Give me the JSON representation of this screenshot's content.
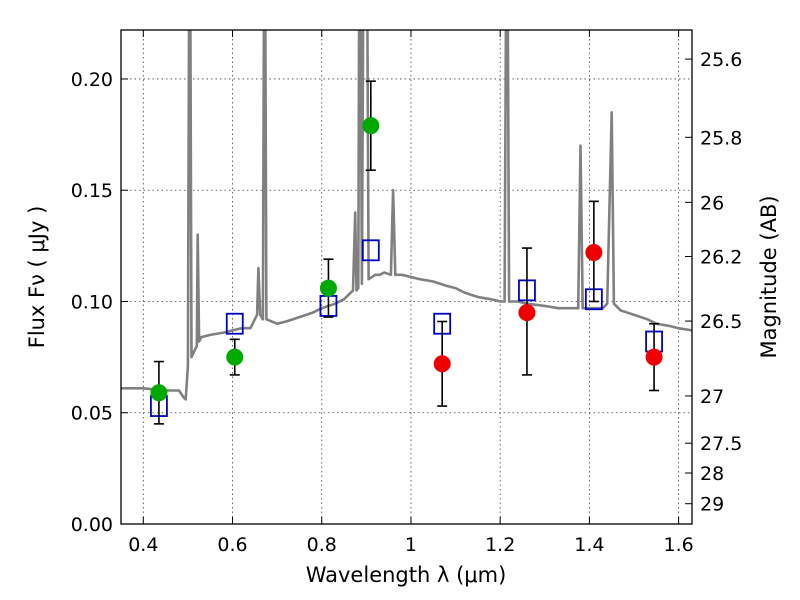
{
  "chart_data": {
    "type": "scatter",
    "xlabel": "Wavelength  λ (μm)",
    "ylabel": "Flux  Fν  ( μJy )",
    "y2label": "Magnitude (AB)",
    "xlim": [
      0.35,
      1.63
    ],
    "ylim": [
      0.0,
      0.222
    ],
    "grid": true,
    "x_ticks": [
      {
        "value": 0.4,
        "label": "0.4"
      },
      {
        "value": 0.6,
        "label": "0.6"
      },
      {
        "value": 0.8,
        "label": "0.8"
      },
      {
        "value": 1.0,
        "label": "1"
      },
      {
        "value": 1.2,
        "label": "1.2"
      },
      {
        "value": 1.4,
        "label": "1.4"
      },
      {
        "value": 1.6,
        "label": "1.6"
      }
    ],
    "y_ticks": [
      {
        "value": 0.0,
        "label": "0.00"
      },
      {
        "value": 0.05,
        "label": "0.05"
      },
      {
        "value": 0.1,
        "label": "0.10"
      },
      {
        "value": 0.15,
        "label": "0.15"
      },
      {
        "value": 0.2,
        "label": "0.20"
      }
    ],
    "mag_ticks": [
      {
        "value": 25.6,
        "label": "25.6"
      },
      {
        "value": 25.8,
        "label": "25.8"
      },
      {
        "value": 26.0,
        "label": "26"
      },
      {
        "value": 26.2,
        "label": "26.2"
      },
      {
        "value": 26.5,
        "label": "26.5"
      },
      {
        "value": 27.0,
        "label": "27"
      },
      {
        "value": 27.5,
        "label": "27.5"
      },
      {
        "value": 28.0,
        "label": "28"
      },
      {
        "value": 29.0,
        "label": "29"
      }
    ],
    "series": [
      {
        "kind": "line",
        "color": "#808080",
        "points": [
          [
            0.35,
            0.061
          ],
          [
            0.4,
            0.061
          ],
          [
            0.45,
            0.06
          ],
          [
            0.48,
            0.06
          ],
          [
            0.49,
            0.057
          ],
          [
            0.495,
            0.056
          ],
          [
            0.5,
            0.071
          ],
          [
            0.504,
            0.32
          ],
          [
            0.508,
            0.075
          ],
          [
            0.515,
            0.078
          ],
          [
            0.52,
            0.08
          ],
          [
            0.522,
            0.13
          ],
          [
            0.525,
            0.082
          ],
          [
            0.53,
            0.084
          ],
          [
            0.55,
            0.085
          ],
          [
            0.58,
            0.086
          ],
          [
            0.6,
            0.087
          ],
          [
            0.62,
            0.088
          ],
          [
            0.64,
            0.088
          ],
          [
            0.655,
            0.094
          ],
          [
            0.658,
            0.115
          ],
          [
            0.662,
            0.094
          ],
          [
            0.668,
            0.092
          ],
          [
            0.672,
            0.32
          ],
          [
            0.676,
            0.092
          ],
          [
            0.7,
            0.09
          ],
          [
            0.72,
            0.091
          ],
          [
            0.75,
            0.093
          ],
          [
            0.78,
            0.095
          ],
          [
            0.8,
            0.097
          ],
          [
            0.83,
            0.099
          ],
          [
            0.85,
            0.101
          ],
          [
            0.87,
            0.105
          ],
          [
            0.875,
            0.14
          ],
          [
            0.878,
            0.105
          ],
          [
            0.882,
            0.106
          ],
          [
            0.885,
            0.32
          ],
          [
            0.89,
            0.108
          ],
          [
            0.895,
            0.32
          ],
          [
            0.9,
            0.32
          ],
          [
            0.905,
            0.11
          ],
          [
            0.92,
            0.112
          ],
          [
            0.93,
            0.112
          ],
          [
            0.94,
            0.113
          ],
          [
            0.955,
            0.112
          ],
          [
            0.96,
            0.15
          ],
          [
            0.965,
            0.112
          ],
          [
            0.98,
            0.112
          ],
          [
            1.0,
            0.111
          ],
          [
            1.02,
            0.11
          ],
          [
            1.05,
            0.109
          ],
          [
            1.08,
            0.107
          ],
          [
            1.1,
            0.106
          ],
          [
            1.12,
            0.104
          ],
          [
            1.15,
            0.102
          ],
          [
            1.18,
            0.101
          ],
          [
            1.2,
            0.1
          ],
          [
            1.21,
            0.1
          ],
          [
            1.215,
            0.32
          ],
          [
            1.22,
            0.1
          ],
          [
            1.24,
            0.1
          ],
          [
            1.26,
            0.099
          ],
          [
            1.3,
            0.098
          ],
          [
            1.33,
            0.097
          ],
          [
            1.36,
            0.097
          ],
          [
            1.375,
            0.097
          ],
          [
            1.38,
            0.17
          ],
          [
            1.385,
            0.097
          ],
          [
            1.4,
            0.097
          ],
          [
            1.43,
            0.097
          ],
          [
            1.44,
            0.099
          ],
          [
            1.45,
            0.185
          ],
          [
            1.455,
            0.099
          ],
          [
            1.47,
            0.096
          ],
          [
            1.5,
            0.094
          ],
          [
            1.53,
            0.092
          ],
          [
            1.55,
            0.09
          ],
          [
            1.58,
            0.089
          ],
          [
            1.6,
            0.088
          ],
          [
            1.63,
            0.087
          ]
        ]
      },
      {
        "kind": "open-square",
        "color": "#0000cc",
        "points": [
          [
            0.435,
            0.053
          ],
          [
            0.605,
            0.09
          ],
          [
            0.815,
            0.098
          ],
          [
            0.91,
            0.123
          ],
          [
            1.07,
            0.09
          ],
          [
            1.26,
            0.105
          ],
          [
            1.41,
            0.101
          ],
          [
            1.545,
            0.082
          ]
        ]
      },
      {
        "kind": "errorbar",
        "color": "#00aa00",
        "points": [
          {
            "x": 0.435,
            "y": 0.059,
            "lo": 0.045,
            "hi": 0.073
          },
          {
            "x": 0.605,
            "y": 0.075,
            "lo": 0.067,
            "hi": 0.083
          },
          {
            "x": 0.815,
            "y": 0.106,
            "lo": 0.093,
            "hi": 0.119
          },
          {
            "x": 0.91,
            "y": 0.179,
            "lo": 0.159,
            "hi": 0.199
          }
        ]
      },
      {
        "kind": "errorbar",
        "color": "#ee0000",
        "points": [
          {
            "x": 1.07,
            "y": 0.072,
            "lo": 0.053,
            "hi": 0.091
          },
          {
            "x": 1.26,
            "y": 0.095,
            "lo": 0.067,
            "hi": 0.124
          },
          {
            "x": 1.41,
            "y": 0.122,
            "lo": 0.1,
            "hi": 0.145
          },
          {
            "x": 1.545,
            "y": 0.075,
            "lo": 0.06,
            "hi": 0.09
          }
        ]
      }
    ]
  }
}
